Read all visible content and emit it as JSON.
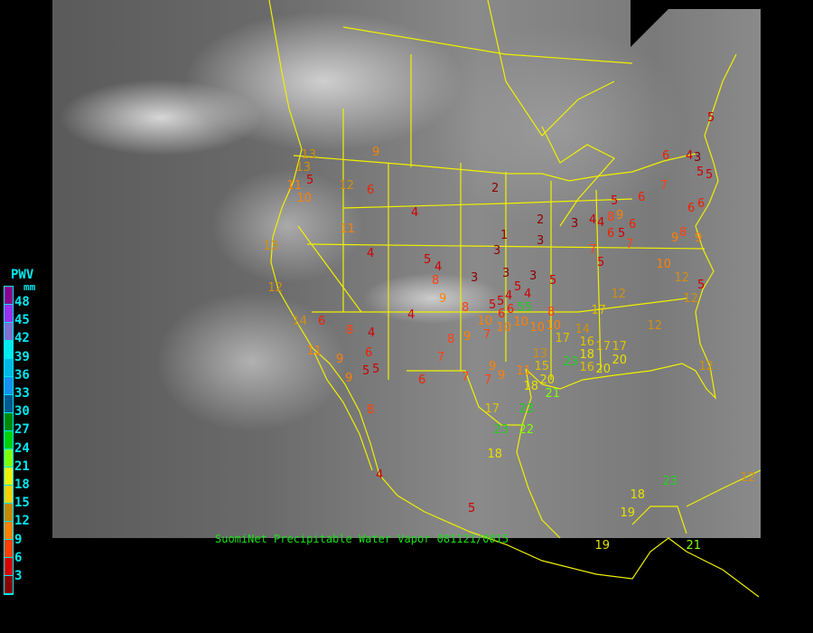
{
  "legend": {
    "title": "PWV",
    "unit": "mm",
    "labels": [
      "48",
      "45",
      "42",
      "39",
      "36",
      "33",
      "30",
      "27",
      "24",
      "21",
      "18",
      "15",
      "12",
      "9",
      "6",
      "3"
    ],
    "colors": [
      "#8c008c",
      "#9a30f0",
      "#8070d0",
      "#00e8f0",
      "#00b8e8",
      "#1890f0",
      "#005890",
      "#008800",
      "#00d000",
      "#80ff00",
      "#f0f000",
      "#f8d000",
      "#c88800",
      "#ff8000",
      "#ff4000",
      "#d80000",
      "#880000"
    ]
  },
  "caption": "SuomiNet Precipitable Water Vapor 081121/0015",
  "stations": [
    5,
    6,
    4,
    3,
    5,
    5,
    7,
    6,
    5,
    9,
    8,
    4,
    4,
    3,
    2,
    2,
    1,
    3,
    3,
    5,
    6,
    6,
    7,
    7,
    5,
    5,
    3,
    3,
    3,
    5,
    4,
    4,
    5,
    5,
    55,
    6,
    6,
    8,
    8,
    9,
    5,
    4,
    8,
    4,
    4,
    4,
    6,
    9,
    12,
    11,
    13,
    12,
    14,
    6,
    8,
    4,
    11,
    6,
    9,
    5,
    5,
    9,
    8,
    6,
    7,
    8,
    9,
    7,
    10,
    10,
    10,
    10,
    10,
    7,
    7,
    9,
    9,
    11,
    15,
    13,
    20,
    21,
    18,
    17,
    23,
    23,
    22,
    18,
    5,
    17,
    23,
    18,
    16,
    20,
    16,
    17,
    17,
    20,
    14,
    12,
    10,
    12,
    5,
    12,
    12,
    12,
    17,
    18,
    19,
    19,
    23,
    12,
    21,
    13,
    13,
    11,
    10,
    5,
    4,
    8,
    9,
    9,
    6,
    6
  ]
}
